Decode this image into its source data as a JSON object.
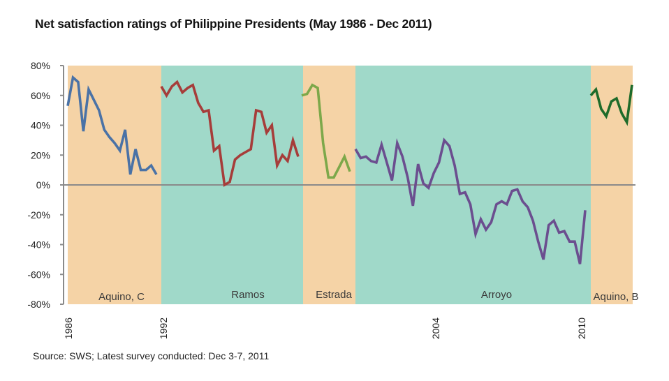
{
  "chart_data": {
    "type": "line",
    "title": "Net satisfaction ratings of Philippine Presidents (May 1986 - Dec 2011)",
    "source": "Source: SWS; Latest survey conducted: Dec 3-7, 2011",
    "xlabel": "",
    "ylabel": "",
    "ylim": [
      -80,
      80
    ],
    "y_ticks": [
      "80%",
      "60%",
      "40%",
      "20%",
      "0%",
      "-20%",
      "-40%",
      "-60%",
      "-80%"
    ],
    "y_tick_values": [
      80,
      60,
      40,
      20,
      0,
      -20,
      -40,
      -60,
      -80
    ],
    "xlim": [
      1986.0,
      2012.0
    ],
    "x_ticks": [
      {
        "label": "1986",
        "value": 1986.0
      },
      {
        "label": "1992",
        "value": 1992.5
      },
      {
        "label": "2004",
        "value": 2004.0
      },
      {
        "label": "2010",
        "value": 2010.25
      }
    ],
    "grid": false,
    "bands": [
      {
        "name": "Aquino, C",
        "start": 1986.3,
        "end": 1992.5,
        "color": "#F5D3A6"
      },
      {
        "name": "Ramos",
        "start": 1992.5,
        "end": 1998.5,
        "color": "#A0D9C9"
      },
      {
        "name": "Estrada",
        "start": 1998.5,
        "end": 2001.0,
        "color": "#F5D3A6"
      },
      {
        "name": "Arroyo",
        "start": 2001.0,
        "end": 2010.5,
        "color": "#A0D9C9"
      },
      {
        "name": "Aquino, B",
        "start": 2010.5,
        "end": 2012.0,
        "color": "#F5D3A6"
      }
    ],
    "series": [
      {
        "name": "Aquino, C",
        "color": "#4A72A6",
        "values": [
          53,
          72,
          69,
          36,
          64,
          57,
          50,
          37,
          32,
          28,
          23,
          37,
          7,
          24,
          10,
          10,
          13,
          7
        ]
      },
      {
        "name": "Ramos",
        "color": "#A63D3A",
        "values": [
          66,
          60,
          66,
          69,
          62,
          65,
          67,
          55,
          49,
          50,
          23,
          26,
          0,
          2,
          17,
          20,
          22,
          24,
          50,
          49,
          35,
          40,
          13,
          20,
          16,
          30,
          19
        ]
      },
      {
        "name": "Estrada",
        "color": "#7DA84A",
        "values": [
          60,
          61,
          67,
          65,
          28,
          5,
          5,
          12,
          19,
          9
        ]
      },
      {
        "name": "Arroyo",
        "color": "#6B4E8F",
        "values": [
          24,
          18,
          19,
          16,
          15,
          27,
          15,
          3,
          28,
          19,
          5,
          -14,
          14,
          1,
          -2,
          8,
          15,
          30,
          26,
          13,
          -6,
          -5,
          -13,
          -33,
          -23,
          -30,
          -25,
          -13,
          -11,
          -13,
          -4,
          -3,
          -11,
          -15,
          -24,
          -38,
          -50,
          -27,
          -24,
          -32,
          -31,
          -38,
          -38,
          -53,
          -17
        ]
      },
      {
        "name": "Aquino, B",
        "color": "#1E6B2A",
        "values": [
          60,
          64,
          51,
          46,
          56,
          58,
          48,
          42,
          67
        ]
      }
    ]
  }
}
